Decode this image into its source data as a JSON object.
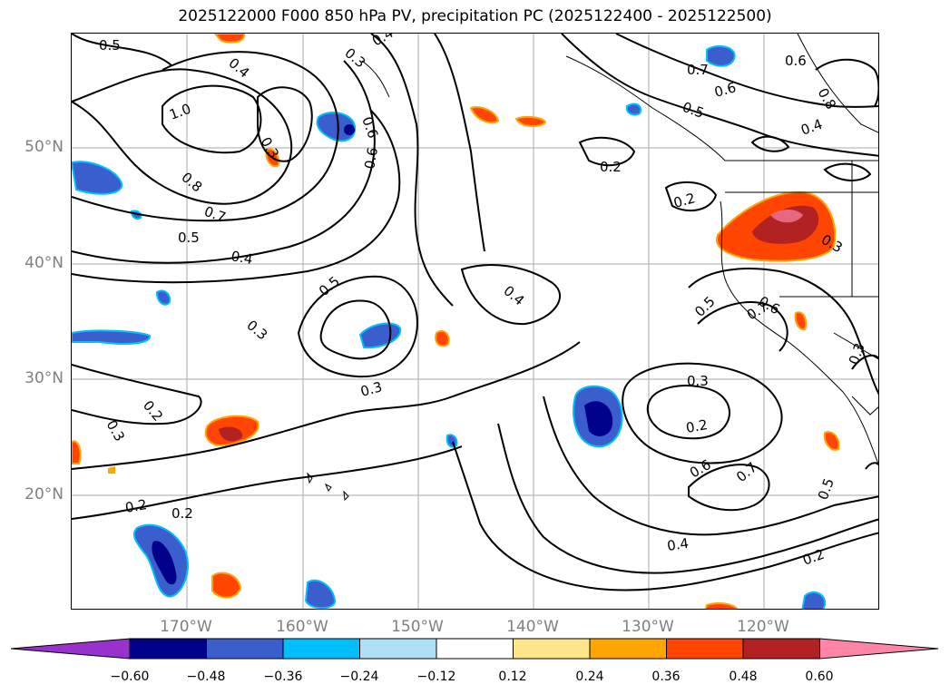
{
  "title": "2025122000 F000 850 hPa PV, precipitation PC (2025122400 - 2025122500)",
  "map": {
    "lat_labels": [
      "50°N",
      "40°N",
      "30°N",
      "20°N"
    ],
    "lon_labels": [
      "170°W",
      "160°W",
      "150°W",
      "140°W",
      "130°W",
      "120°W"
    ],
    "contour_labels": [
      "0.5",
      "0.4",
      "1.0",
      "0.8",
      "0.7",
      "0.5",
      "0.4",
      "0.3",
      "0.2",
      "0.3",
      "0.2",
      "0.6",
      "0.3",
      "0.6",
      "0.4",
      "0.5",
      "0.3",
      "0.2",
      "0.4",
      "0.7",
      "0.6",
      "0.5",
      "0.2",
      "0.2",
      "0.3",
      "0.5",
      "0.6",
      "0.7",
      "0.3",
      "0.3",
      "0.2",
      "0.6",
      "0.7",
      "0.4",
      "0.2",
      "0.5",
      "0.6",
      "0.8",
      "0.4",
      "0.3"
    ]
  },
  "colorbar": {
    "ticks": [
      "−0.60",
      "−0.48",
      "−0.36",
      "−0.24",
      "−0.12",
      "0.12",
      "0.24",
      "0.36",
      "0.48",
      "0.60"
    ],
    "colors": [
      "#9932cc",
      "#00008b",
      "#3a5fcd",
      "#00bfff",
      "#aee0f8",
      "#ffffff",
      "#fde68a",
      "#ffa500",
      "#ff4500",
      "#b22222",
      "#ff85a8"
    ]
  }
}
